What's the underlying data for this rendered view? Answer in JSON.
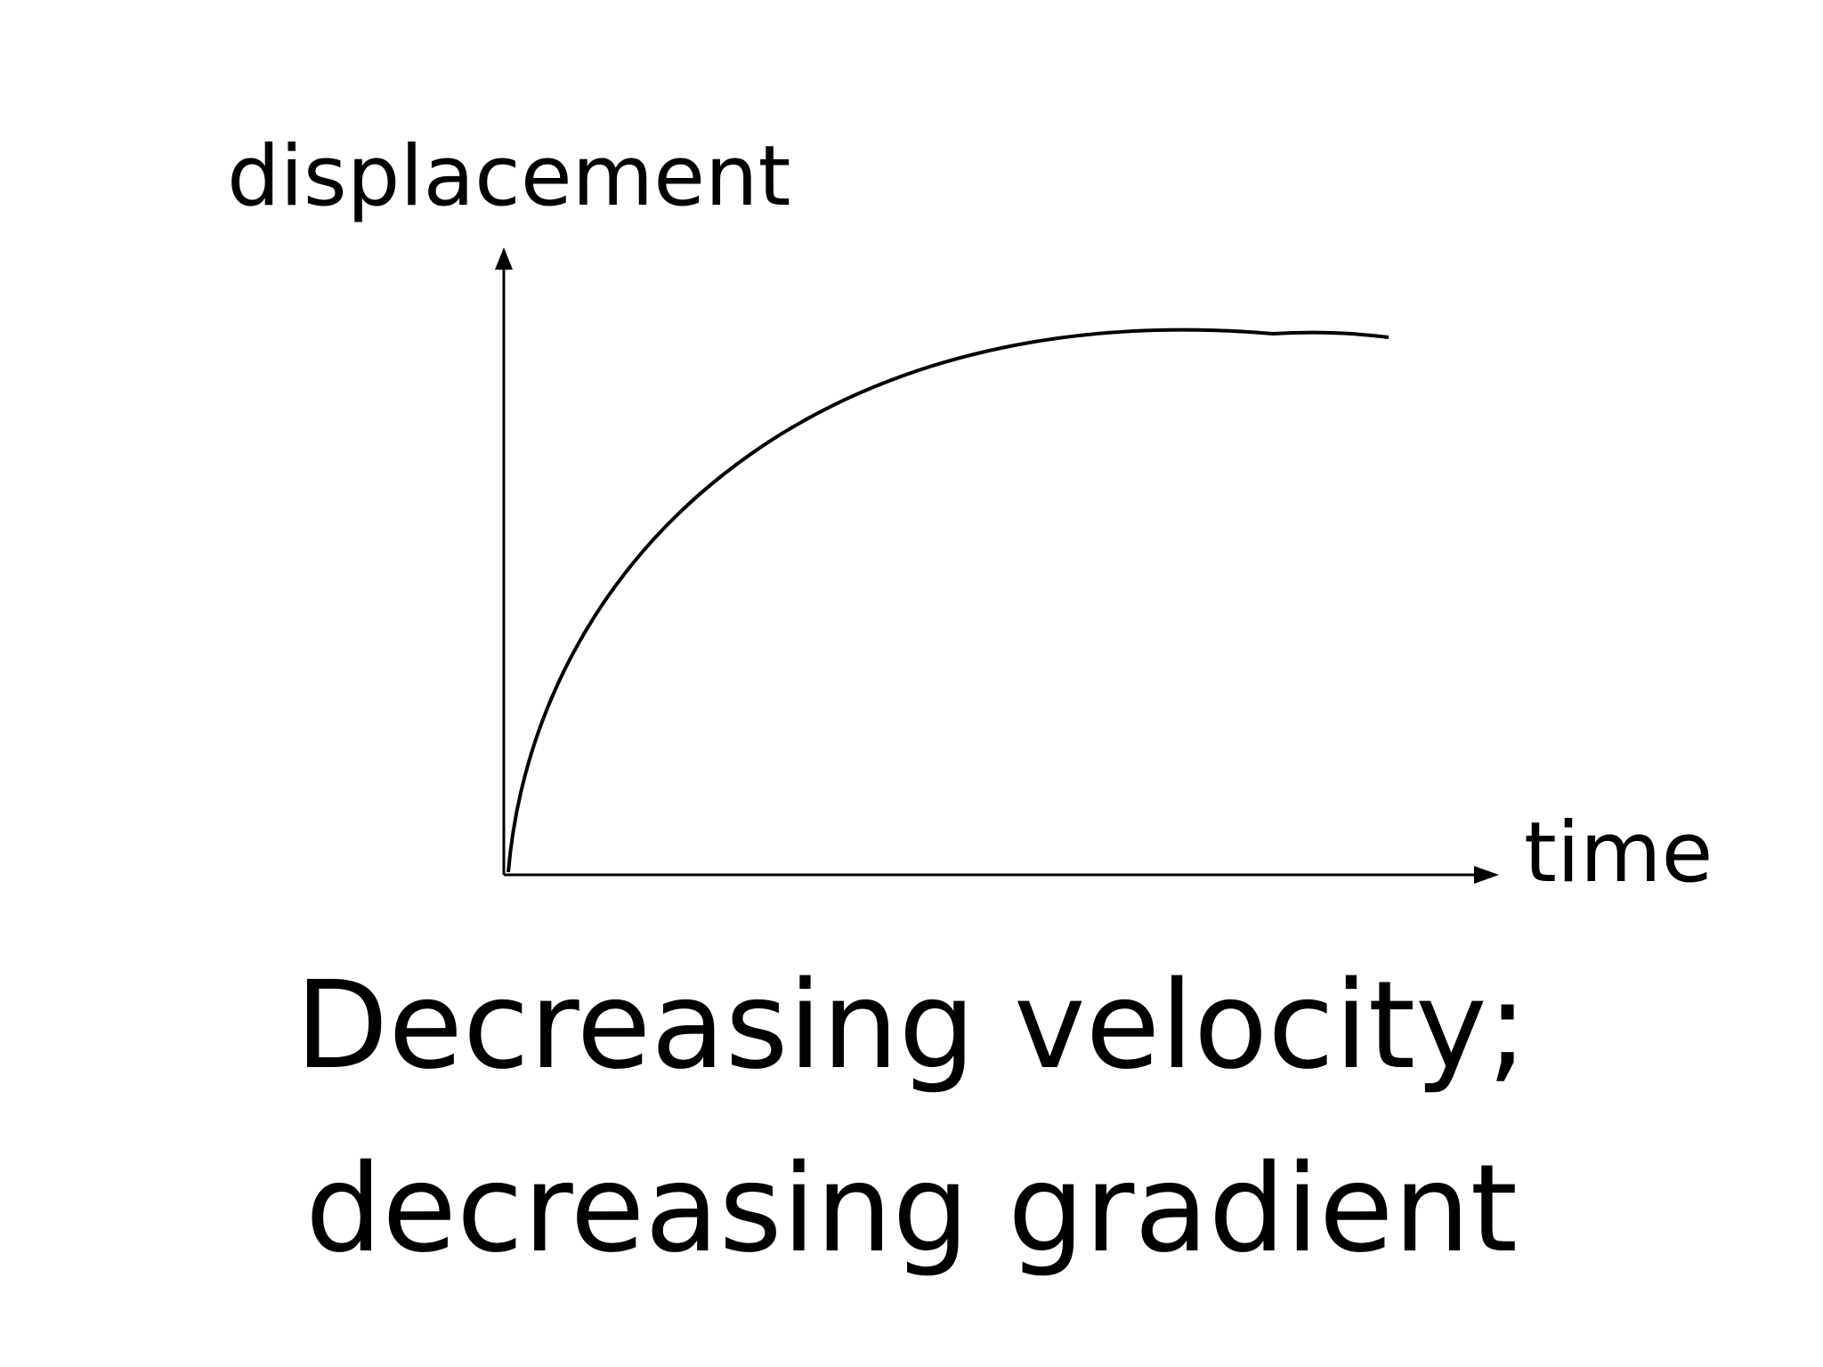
{
  "diagram": {
    "y_axis_label": "displacement",
    "x_axis_label": "time",
    "curve_description": "concave-down rising curve",
    "caption_line1": "Decreasing velocity;",
    "caption_line2": "decreasing gradient",
    "colors": {
      "axis": "#000000",
      "curve": "#000000",
      "text": "#000000",
      "background": "#ffffff"
    }
  }
}
